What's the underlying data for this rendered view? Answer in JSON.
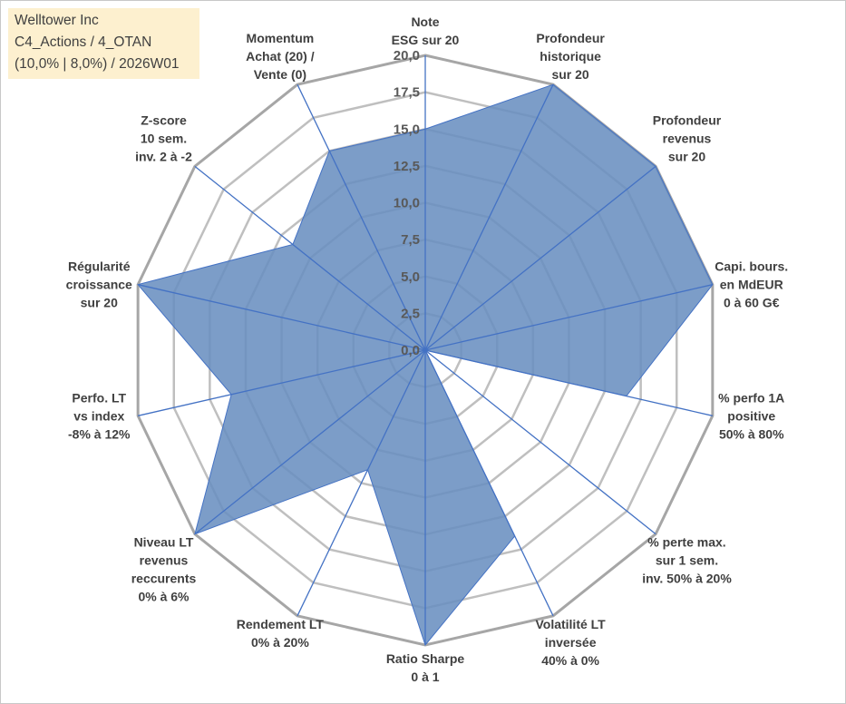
{
  "info_box": {
    "line1": "Welltower Inc",
    "line2": "C4_Actions / 4_OTAN",
    "line3": "(10,0% | 8,0%) / 2026W01"
  },
  "colors": {
    "fill": "#6a8fc0",
    "series_line": "#4472c4",
    "axis_line": "#4472c4",
    "grid": "#bfbfbf",
    "outer_grid": "#a6a6a6"
  },
  "chart_data": {
    "type": "radar",
    "title": "",
    "rlim": [
      0,
      20
    ],
    "ticks": [
      "0,0",
      "2,5",
      "5,0",
      "7,5",
      "10,0",
      "12,5",
      "15,0",
      "17,5",
      "20,0"
    ],
    "axes": [
      [
        "Note",
        "ESG sur 20"
      ],
      [
        "Profondeur",
        "historique",
        "sur 20"
      ],
      [
        "Profondeur",
        "revenus",
        "sur 20"
      ],
      [
        "Capi. bours.",
        "en MdEUR",
        "0 à 60 G€"
      ],
      [
        "% perfo 1A",
        "positive",
        "50% à 80%"
      ],
      [
        "% perte max.",
        "sur 1 sem.",
        "inv. 50% à 20%"
      ],
      [
        "Volatilité LT",
        "inversée",
        "40% à 0%"
      ],
      [
        "Ratio Sharpe",
        "0 à 1"
      ],
      [
        "Rendement LT",
        "0% à 20%"
      ],
      [
        "Niveau LT",
        "revenus",
        "reccurents",
        "0% à 6%"
      ],
      [
        "Perfo. LT",
        "vs index",
        "-8% à 12%"
      ],
      [
        "Régularité",
        "croissance",
        "sur 20"
      ],
      [
        "Z-score",
        "10 sem.",
        "inv. 2 à -2"
      ],
      [
        "Momentum",
        "Achat (20) /",
        "Vente (0)"
      ]
    ],
    "series": [
      {
        "name": "Welltower Inc",
        "values": [
          15.0,
          20.0,
          20.0,
          20.0,
          14.0,
          0.0,
          14.0,
          20.0,
          9.0,
          20.0,
          13.5,
          20.0,
          11.5,
          15.0
        ]
      }
    ]
  }
}
